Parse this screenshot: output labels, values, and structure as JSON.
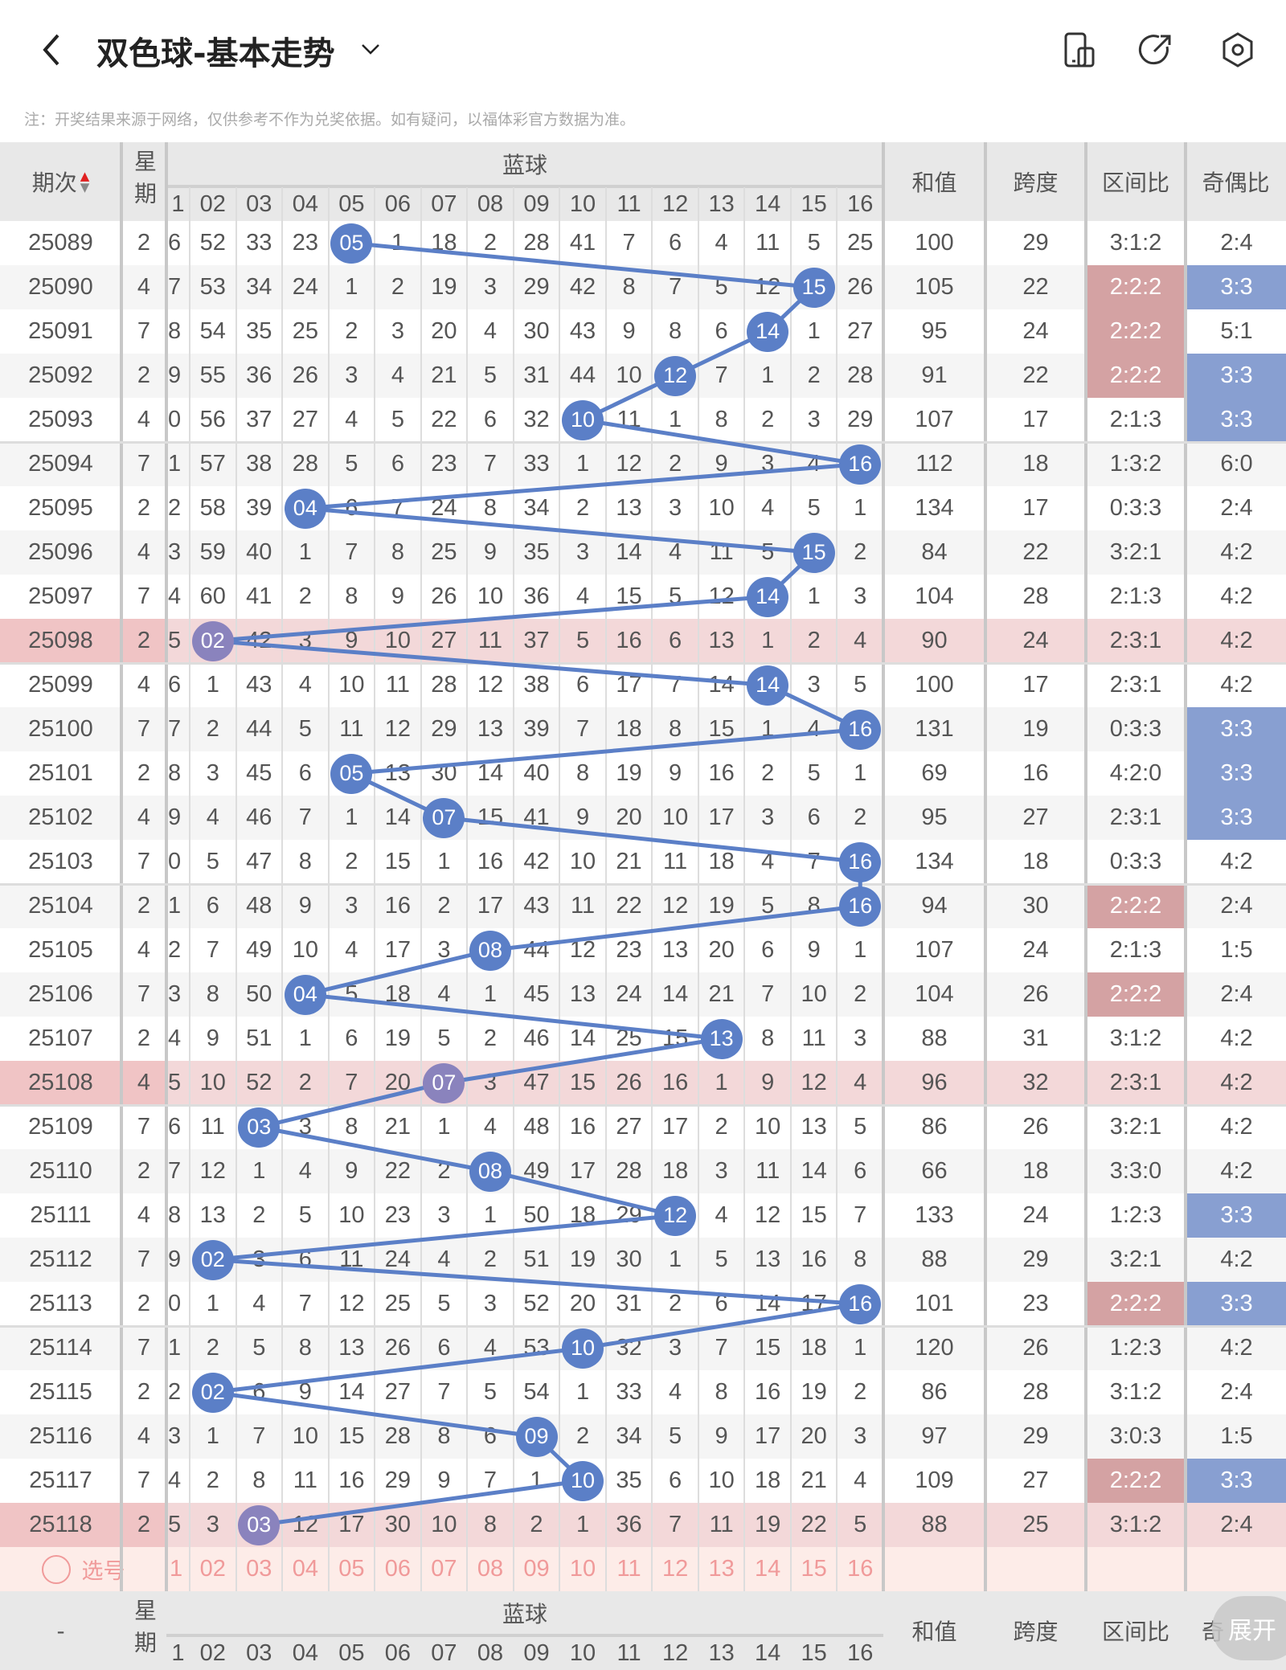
{
  "header": {
    "title": "双色球-基本走势",
    "note": "注：开奖结果来源于网络，仅供参考不作为兑奖依据。如有疑问，以福体彩官方数据为准。",
    "icons": [
      "back-icon",
      "chevron-down-icon",
      "phone-icon",
      "share-icon",
      "settings-icon"
    ]
  },
  "table": {
    "col_period": "期次",
    "col_weekday": "星期",
    "col_blue": "蓝球",
    "blue_numbers": [
      "1",
      "02",
      "03",
      "04",
      "05",
      "06",
      "07",
      "08",
      "09",
      "10",
      "11",
      "12",
      "13",
      "14",
      "15",
      "16"
    ],
    "col_sum": "和值",
    "col_span": "跨度",
    "col_interval": "区间比",
    "col_odd_even": "奇偶比",
    "rows": [
      {
        "period": "25089",
        "weekday": "2",
        "cells": [
          "6",
          "52",
          "33",
          "23",
          "05",
          "1",
          "18",
          "2",
          "28",
          "41",
          "7",
          "6",
          "4",
          "11",
          "5",
          "25"
        ],
        "hit": 4,
        "sum": "100",
        "span": "29",
        "interval": "3:1:2",
        "odd_even": "2:4",
        "ihl": false,
        "ohl": false,
        "pink": false
      },
      {
        "period": "25090",
        "weekday": "4",
        "cells": [
          "7",
          "53",
          "34",
          "24",
          "1",
          "2",
          "19",
          "3",
          "29",
          "42",
          "8",
          "7",
          "5",
          "12",
          "15",
          "26"
        ],
        "hit": 14,
        "sum": "105",
        "span": "22",
        "interval": "2:2:2",
        "odd_even": "3:3",
        "ihl": true,
        "ohl": true,
        "pink": false
      },
      {
        "period": "25091",
        "weekday": "7",
        "cells": [
          "8",
          "54",
          "35",
          "25",
          "2",
          "3",
          "20",
          "4",
          "30",
          "43",
          "9",
          "8",
          "6",
          "14",
          "1",
          "27"
        ],
        "hit": 13,
        "sum": "95",
        "span": "24",
        "interval": "2:2:2",
        "odd_even": "5:1",
        "ihl": true,
        "ohl": false,
        "pink": false
      },
      {
        "period": "25092",
        "weekday": "2",
        "cells": [
          "9",
          "55",
          "36",
          "26",
          "3",
          "4",
          "21",
          "5",
          "31",
          "44",
          "10",
          "12",
          "7",
          "1",
          "2",
          "28"
        ],
        "hit": 11,
        "sum": "91",
        "span": "22",
        "interval": "2:2:2",
        "odd_even": "3:3",
        "ihl": true,
        "ohl": true,
        "pink": false
      },
      {
        "period": "25093",
        "weekday": "4",
        "cells": [
          "0",
          "56",
          "37",
          "27",
          "4",
          "5",
          "22",
          "6",
          "32",
          "10",
          "11",
          "1",
          "8",
          "2",
          "3",
          "29"
        ],
        "hit": 9,
        "sum": "107",
        "span": "17",
        "interval": "2:1:3",
        "odd_even": "3:3",
        "ihl": false,
        "ohl": true,
        "pink": false
      },
      {
        "period": "25094",
        "weekday": "7",
        "cells": [
          "1",
          "57",
          "38",
          "28",
          "5",
          "6",
          "23",
          "7",
          "33",
          "1",
          "12",
          "2",
          "9",
          "3",
          "4",
          "16"
        ],
        "hit": 15,
        "sum": "112",
        "span": "18",
        "interval": "1:3:2",
        "odd_even": "6:0",
        "ihl": false,
        "ohl": false,
        "pink": false
      },
      {
        "period": "25095",
        "weekday": "2",
        "cells": [
          "2",
          "58",
          "39",
          "04",
          "6",
          "7",
          "24",
          "8",
          "34",
          "2",
          "13",
          "3",
          "10",
          "4",
          "5",
          "1"
        ],
        "hit": 3,
        "sum": "134",
        "span": "17",
        "interval": "0:3:3",
        "odd_even": "2:4",
        "ihl": false,
        "ohl": false,
        "pink": false
      },
      {
        "period": "25096",
        "weekday": "4",
        "cells": [
          "3",
          "59",
          "40",
          "1",
          "7",
          "8",
          "25",
          "9",
          "35",
          "3",
          "14",
          "4",
          "11",
          "5",
          "15",
          "2"
        ],
        "hit": 14,
        "sum": "84",
        "span": "22",
        "interval": "3:2:1",
        "odd_even": "4:2",
        "ihl": false,
        "ohl": false,
        "pink": false
      },
      {
        "period": "25097",
        "weekday": "7",
        "cells": [
          "4",
          "60",
          "41",
          "2",
          "8",
          "9",
          "26",
          "10",
          "36",
          "4",
          "15",
          "5",
          "12",
          "14",
          "1",
          "3"
        ],
        "hit": 13,
        "sum": "104",
        "span": "28",
        "interval": "2:1:3",
        "odd_even": "4:2",
        "ihl": false,
        "ohl": false,
        "pink": false
      },
      {
        "period": "25098",
        "weekday": "2",
        "cells": [
          "5",
          "02",
          "42",
          "3",
          "9",
          "10",
          "27",
          "11",
          "37",
          "5",
          "16",
          "6",
          "13",
          "1",
          "2",
          "4"
        ],
        "hit": 1,
        "sum": "90",
        "span": "24",
        "interval": "2:3:1",
        "odd_even": "4:2",
        "ihl": false,
        "ohl": false,
        "pink": true
      },
      {
        "period": "25099",
        "weekday": "4",
        "cells": [
          "6",
          "1",
          "43",
          "4",
          "10",
          "11",
          "28",
          "12",
          "38",
          "6",
          "17",
          "7",
          "14",
          "14",
          "3",
          "5"
        ],
        "hit": 13,
        "sum": "100",
        "span": "17",
        "interval": "2:3:1",
        "odd_even": "4:2",
        "ihl": false,
        "ohl": false,
        "pink": false
      },
      {
        "period": "25100",
        "weekday": "7",
        "cells": [
          "7",
          "2",
          "44",
          "5",
          "11",
          "12",
          "29",
          "13",
          "39",
          "7",
          "18",
          "8",
          "15",
          "1",
          "4",
          "16"
        ],
        "hit": 15,
        "sum": "131",
        "span": "19",
        "interval": "0:3:3",
        "odd_even": "3:3",
        "ihl": false,
        "ohl": true,
        "pink": false
      },
      {
        "period": "25101",
        "weekday": "2",
        "cells": [
          "8",
          "3",
          "45",
          "6",
          "05",
          "13",
          "30",
          "14",
          "40",
          "8",
          "19",
          "9",
          "16",
          "2",
          "5",
          "1"
        ],
        "hit": 4,
        "sum": "69",
        "span": "16",
        "interval": "4:2:0",
        "odd_even": "3:3",
        "ihl": false,
        "ohl": true,
        "pink": false
      },
      {
        "period": "25102",
        "weekday": "4",
        "cells": [
          "9",
          "4",
          "46",
          "7",
          "1",
          "14",
          "07",
          "15",
          "41",
          "9",
          "20",
          "10",
          "17",
          "3",
          "6",
          "2"
        ],
        "hit": 6,
        "sum": "95",
        "span": "27",
        "interval": "2:3:1",
        "odd_even": "3:3",
        "ihl": false,
        "ohl": true,
        "pink": false
      },
      {
        "period": "25103",
        "weekday": "7",
        "cells": [
          "0",
          "5",
          "47",
          "8",
          "2",
          "15",
          "1",
          "16",
          "42",
          "10",
          "21",
          "11",
          "18",
          "4",
          "7",
          "16"
        ],
        "hit": 15,
        "sum": "134",
        "span": "18",
        "interval": "0:3:3",
        "odd_even": "4:2",
        "ihl": false,
        "ohl": false,
        "pink": false
      },
      {
        "period": "25104",
        "weekday": "2",
        "cells": [
          "1",
          "6",
          "48",
          "9",
          "3",
          "16",
          "2",
          "17",
          "43",
          "11",
          "22",
          "12",
          "19",
          "5",
          "8",
          "16"
        ],
        "hit": 15,
        "sum": "94",
        "span": "30",
        "interval": "2:2:2",
        "odd_even": "2:4",
        "ihl": true,
        "ohl": false,
        "pink": false
      },
      {
        "period": "25105",
        "weekday": "4",
        "cells": [
          "2",
          "7",
          "49",
          "10",
          "4",
          "17",
          "3",
          "08",
          "44",
          "12",
          "23",
          "13",
          "20",
          "6",
          "9",
          "1"
        ],
        "hit": 7,
        "sum": "107",
        "span": "24",
        "interval": "2:1:3",
        "odd_even": "1:5",
        "ihl": false,
        "ohl": false,
        "pink": false
      },
      {
        "period": "25106",
        "weekday": "7",
        "cells": [
          "3",
          "8",
          "50",
          "04",
          "5",
          "18",
          "4",
          "1",
          "45",
          "13",
          "24",
          "14",
          "21",
          "7",
          "10",
          "2"
        ],
        "hit": 3,
        "sum": "104",
        "span": "26",
        "interval": "2:2:2",
        "odd_even": "2:4",
        "ihl": true,
        "ohl": false,
        "pink": false
      },
      {
        "period": "25107",
        "weekday": "2",
        "cells": [
          "4",
          "9",
          "51",
          "1",
          "6",
          "19",
          "5",
          "2",
          "46",
          "14",
          "25",
          "15",
          "13",
          "8",
          "11",
          "3"
        ],
        "hit": 12,
        "sum": "88",
        "span": "31",
        "interval": "3:1:2",
        "odd_even": "4:2",
        "ihl": false,
        "ohl": false,
        "pink": false
      },
      {
        "period": "25108",
        "weekday": "4",
        "cells": [
          "5",
          "10",
          "52",
          "2",
          "7",
          "20",
          "07",
          "3",
          "47",
          "15",
          "26",
          "16",
          "1",
          "9",
          "12",
          "4"
        ],
        "hit": 6,
        "sum": "96",
        "span": "32",
        "interval": "2:3:1",
        "odd_even": "4:2",
        "ihl": false,
        "ohl": false,
        "pink": true
      },
      {
        "period": "25109",
        "weekday": "7",
        "cells": [
          "6",
          "11",
          "03",
          "3",
          "8",
          "21",
          "1",
          "4",
          "48",
          "16",
          "27",
          "17",
          "2",
          "10",
          "13",
          "5"
        ],
        "hit": 2,
        "sum": "86",
        "span": "26",
        "interval": "3:2:1",
        "odd_even": "4:2",
        "ihl": false,
        "ohl": false,
        "pink": false
      },
      {
        "period": "25110",
        "weekday": "2",
        "cells": [
          "7",
          "12",
          "1",
          "4",
          "9",
          "22",
          "2",
          "08",
          "49",
          "17",
          "28",
          "18",
          "3",
          "11",
          "14",
          "6"
        ],
        "hit": 7,
        "sum": "66",
        "span": "18",
        "interval": "3:3:0",
        "odd_even": "4:2",
        "ihl": false,
        "ohl": false,
        "pink": false
      },
      {
        "period": "25111",
        "weekday": "4",
        "cells": [
          "8",
          "13",
          "2",
          "5",
          "10",
          "23",
          "3",
          "1",
          "50",
          "18",
          "29",
          "12",
          "4",
          "12",
          "15",
          "7"
        ],
        "hit": 11,
        "sum": "133",
        "span": "24",
        "interval": "1:2:3",
        "odd_even": "3:3",
        "ihl": false,
        "ohl": true,
        "pink": false
      },
      {
        "period": "25112",
        "weekday": "7",
        "cells": [
          "9",
          "02",
          "3",
          "6",
          "11",
          "24",
          "4",
          "2",
          "51",
          "19",
          "30",
          "1",
          "5",
          "13",
          "16",
          "8"
        ],
        "hit": 1,
        "sum": "88",
        "span": "29",
        "interval": "3:2:1",
        "odd_even": "4:2",
        "ihl": false,
        "ohl": false,
        "pink": false
      },
      {
        "period": "25113",
        "weekday": "2",
        "cells": [
          "0",
          "1",
          "4",
          "7",
          "12",
          "25",
          "5",
          "3",
          "52",
          "20",
          "31",
          "2",
          "6",
          "14",
          "17",
          "16"
        ],
        "hit": 15,
        "sum": "101",
        "span": "23",
        "interval": "2:2:2",
        "odd_even": "3:3",
        "ihl": true,
        "ohl": true,
        "pink": false
      },
      {
        "period": "25114",
        "weekday": "7",
        "cells": [
          "1",
          "2",
          "5",
          "8",
          "13",
          "26",
          "6",
          "4",
          "53",
          "10",
          "32",
          "3",
          "7",
          "15",
          "18",
          "1"
        ],
        "hit": 9,
        "sum": "120",
        "span": "26",
        "interval": "1:2:3",
        "odd_even": "4:2",
        "ihl": false,
        "ohl": false,
        "pink": false
      },
      {
        "period": "25115",
        "weekday": "2",
        "cells": [
          "2",
          "02",
          "6",
          "9",
          "14",
          "27",
          "7",
          "5",
          "54",
          "1",
          "33",
          "4",
          "8",
          "16",
          "19",
          "2"
        ],
        "hit": 1,
        "sum": "86",
        "span": "28",
        "interval": "3:1:2",
        "odd_even": "2:4",
        "ihl": false,
        "ohl": false,
        "pink": false
      },
      {
        "period": "25116",
        "weekday": "4",
        "cells": [
          "3",
          "1",
          "7",
          "10",
          "15",
          "28",
          "8",
          "6",
          "09",
          "2",
          "34",
          "5",
          "9",
          "17",
          "20",
          "3"
        ],
        "hit": 8,
        "sum": "97",
        "span": "29",
        "interval": "3:0:3",
        "odd_even": "1:5",
        "ihl": false,
        "ohl": false,
        "pink": false
      },
      {
        "period": "25117",
        "weekday": "7",
        "cells": [
          "4",
          "2",
          "8",
          "11",
          "16",
          "29",
          "9",
          "7",
          "1",
          "10",
          "35",
          "6",
          "10",
          "18",
          "21",
          "4"
        ],
        "hit": 9,
        "sum": "109",
        "span": "27",
        "interval": "2:2:2",
        "odd_even": "3:3",
        "ihl": true,
        "ohl": true,
        "pink": false
      },
      {
        "period": "25118",
        "weekday": "2",
        "cells": [
          "5",
          "3",
          "03",
          "12",
          "17",
          "30",
          "10",
          "8",
          "2",
          "1",
          "36",
          "7",
          "11",
          "19",
          "22",
          "5"
        ],
        "hit": 2,
        "sum": "88",
        "span": "25",
        "interval": "3:1:2",
        "odd_even": "2:4",
        "ihl": false,
        "ohl": false,
        "pink": true
      }
    ],
    "select_label": "选号",
    "footer_period": "-",
    "footer_odd_even_partial": "奇"
  },
  "expand_button": "展开",
  "colors": {
    "ball": "#5b7fc7",
    "ball_pink": "#8a83bd",
    "line": "#5b7fc7",
    "interval_hl": "#d4a2a3",
    "odd_even_hl": "#889fd1",
    "pink_row": "#f3d8d9",
    "pink_lead": "#f0c4c5",
    "select_row": "#fdece8"
  }
}
